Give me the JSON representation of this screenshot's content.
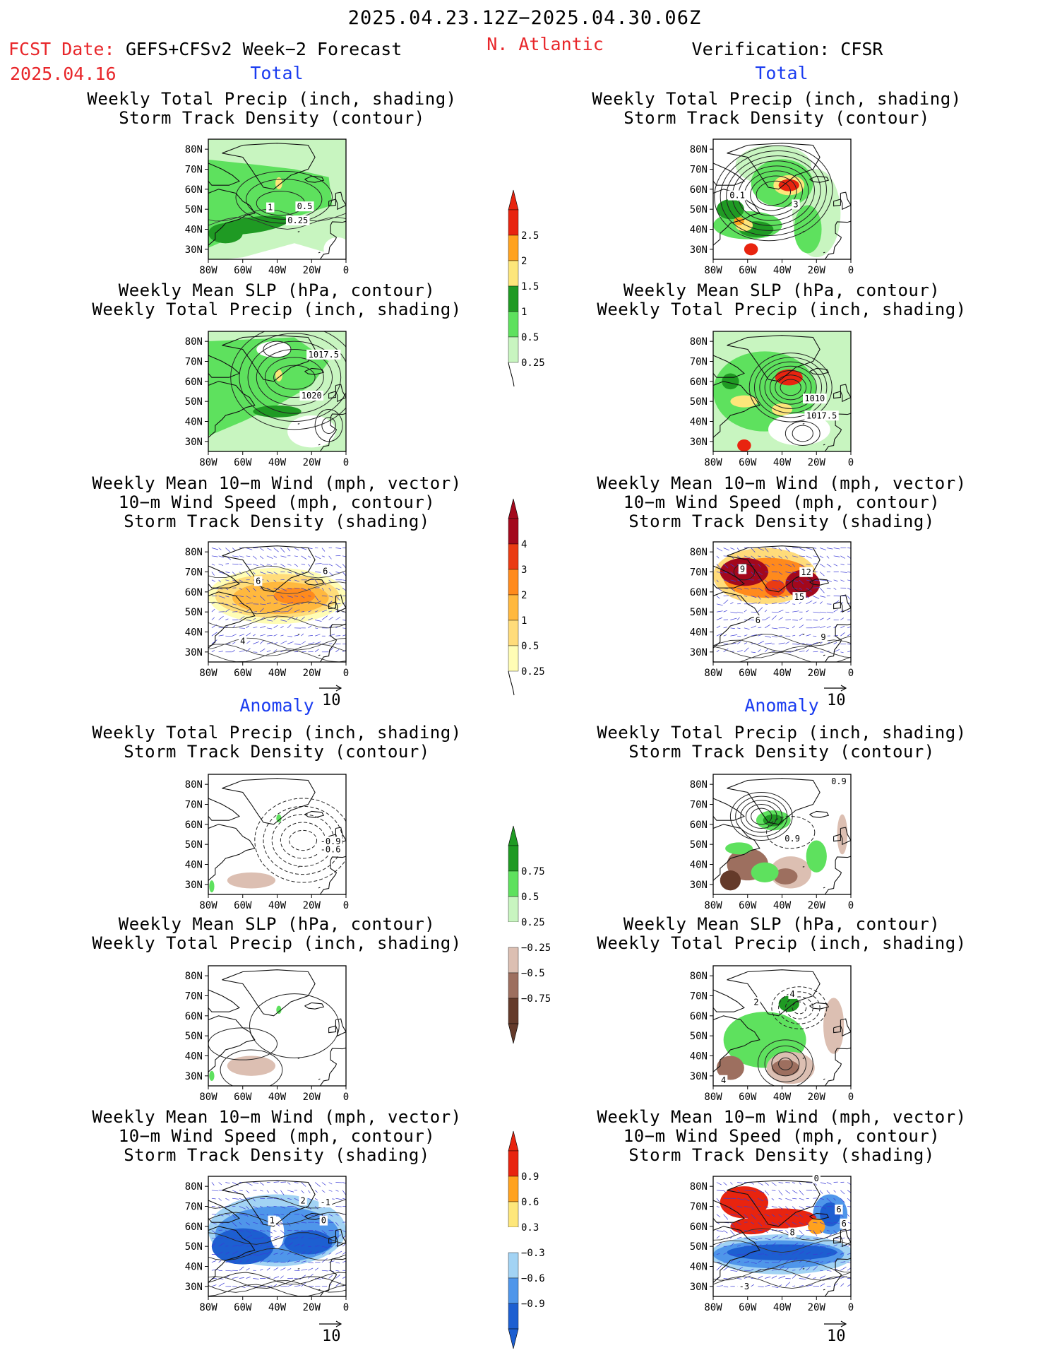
{
  "header": {
    "period": "2025.04.23.12Z−2025.04.30.06Z",
    "fcst_date_label": "FCST Date:",
    "fcst_date": "2025.04.16",
    "forecast_name": "GEFS+CFSv2 Week−2 Forecast",
    "region": "N. Atlantic",
    "verification": "Verification: CFSR"
  },
  "sections": {
    "total": "Total",
    "anomaly": "Anomaly"
  },
  "titles": {
    "precip_track": [
      "Weekly Total Precip (inch, shading)",
      "Storm Track Density (contour)"
    ],
    "slp_precip": [
      "Weekly Mean SLP (hPa, contour)",
      "Weekly Total Precip (inch, shading)"
    ],
    "wind_track": [
      "Weekly Mean 10−m Wind (mph, vector)",
      "10−m Wind Speed (mph, contour)",
      "Storm Track Density (shading)"
    ]
  },
  "axes": {
    "lat_ticks": [
      "80N",
      "70N",
      "60N",
      "50N",
      "40N",
      "30N"
    ],
    "lon_ticks": [
      "80W",
      "60W",
      "40W",
      "20W",
      "0"
    ]
  },
  "vector_ref": "10",
  "contour_labels": {
    "fc_total_track": [
      "1",
      "0.5",
      "0.25"
    ],
    "vf_total_track": [
      "0.1",
      "3"
    ],
    "fc_total_slp": [
      "1017.5",
      "1020"
    ],
    "vf_total_slp": [
      "1010",
      "1017.5"
    ],
    "fc_total_wind": [
      "6",
      "6",
      "4"
    ],
    "vf_total_wind": [
      "9",
      "12",
      "15",
      "6",
      "9"
    ],
    "fc_anom_track": [
      "-0.9",
      "-0.6"
    ],
    "vf_anom_track": [
      "0.9",
      "0.9"
    ],
    "vf_anom_slp": [
      "2",
      "4",
      "4"
    ],
    "fc_anom_wind": [
      "2",
      "-1",
      "1",
      "0"
    ],
    "vf_anom_wind": [
      "0",
      "6",
      "6",
      "8",
      "-3"
    ]
  },
  "colors": {
    "precip_total": [
      "#c8f5c0",
      "#5ee15e",
      "#1f9a23",
      "#fde67a",
      "#ffa21e",
      "#e8240f"
    ],
    "track_total": [
      "#fffdb5",
      "#ffdc7a",
      "#ffb83e",
      "#ff8a1c",
      "#ea3b12",
      "#a3081c"
    ],
    "precip_anom": [
      "#643a2a",
      "#9d6f5f",
      "#dcbfb2",
      "#ffffff",
      "#c8f5c0",
      "#5ee15e",
      "#1f9a23"
    ],
    "track_anom": [
      "#1d5fd1",
      "#4f96ea",
      "#a2d3f4",
      "#ffffff",
      "#fee77a",
      "#ffa21e",
      "#e8240f"
    ]
  },
  "chart_data": [
    {
      "type": "colorbar",
      "name": "total_precip",
      "levels": [
        "0.25",
        "0.5",
        "1",
        "1.5",
        "2",
        "2.5"
      ]
    },
    {
      "type": "colorbar",
      "name": "total_track_density",
      "levels": [
        "0.25",
        "0.5",
        "1",
        "2",
        "3",
        "4"
      ]
    },
    {
      "type": "colorbar",
      "name": "anomaly_precip",
      "levels": [
        "−0.75",
        "−0.5",
        "−0.25",
        "0.25",
        "0.5",
        "0.75"
      ]
    },
    {
      "type": "colorbar",
      "name": "anomaly_track_density",
      "levels": [
        "−0.9",
        "−0.6",
        "−0.3",
        "0.3",
        "0.6",
        "0.9"
      ]
    }
  ]
}
